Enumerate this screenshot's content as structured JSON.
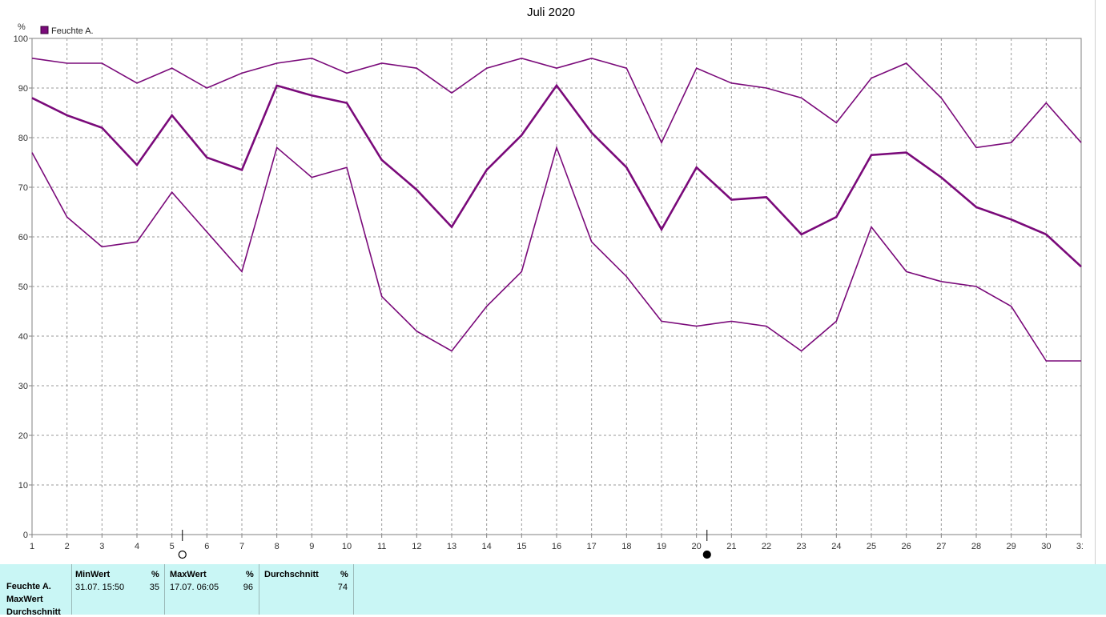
{
  "chart_data": {
    "type": "line",
    "title": "Juli 2020",
    "ylabel": "%",
    "legend": {
      "label": "Feuchte A.",
      "color": "#7a0a7a",
      "placement": "top-left"
    },
    "ylim": [
      0,
      100
    ],
    "yticks": [
      "0",
      "10",
      "20",
      "30",
      "40",
      "50",
      "60",
      "70",
      "80",
      "90",
      "100"
    ],
    "x": [
      "1",
      "2",
      "3",
      "4",
      "5",
      "6",
      "7",
      "8",
      "9",
      "10",
      "11",
      "12",
      "13",
      "14",
      "15",
      "16",
      "17",
      "18",
      "19",
      "20",
      "21",
      "22",
      "23",
      "24",
      "25",
      "26",
      "27",
      "28",
      "29",
      "30",
      "31"
    ],
    "grid": true,
    "series": [
      {
        "values": [
          96,
          95,
          95,
          91,
          94,
          90,
          93,
          95,
          96,
          93,
          95,
          94,
          89,
          94,
          96,
          94,
          96,
          94,
          79,
          94,
          91,
          90,
          88,
          83,
          92,
          95,
          88,
          78,
          79,
          87,
          79
        ]
      },
      {
        "values": [
          88,
          84.5,
          82,
          74.5,
          84.5,
          76,
          73.5,
          90.5,
          88.5,
          87,
          75.5,
          69.5,
          62,
          73.5,
          80.5,
          90.5,
          81,
          74,
          61.5,
          74,
          67.5,
          68,
          60.5,
          64,
          76.5,
          77,
          72,
          66,
          63.5,
          60.5,
          54
        ]
      },
      {
        "values": [
          77,
          64,
          58,
          59,
          69,
          61,
          53,
          78,
          72,
          74,
          48,
          41,
          37,
          46,
          53,
          78,
          59,
          52,
          43,
          42,
          43,
          42,
          37,
          43,
          62,
          53,
          51,
          50,
          46,
          35,
          35
        ]
      }
    ],
    "moon_markers": [
      {
        "after_day": 5,
        "symbol": "full-moon"
      },
      {
        "after_day": 20,
        "symbol": "new-moon"
      }
    ]
  },
  "stats": {
    "row_labels": [
      "Feuchte A.",
      "MaxWert",
      "Durchschnitt"
    ],
    "min": {
      "header": "MinWert",
      "unit": "%",
      "datetime": "31.07.  15:50",
      "value": "35"
    },
    "max": {
      "header": "MaxWert",
      "unit": "%",
      "datetime": "17.07.  06:05",
      "value": "96"
    },
    "avg": {
      "header": "Durchschnitt",
      "unit": "%",
      "value": "74"
    }
  }
}
